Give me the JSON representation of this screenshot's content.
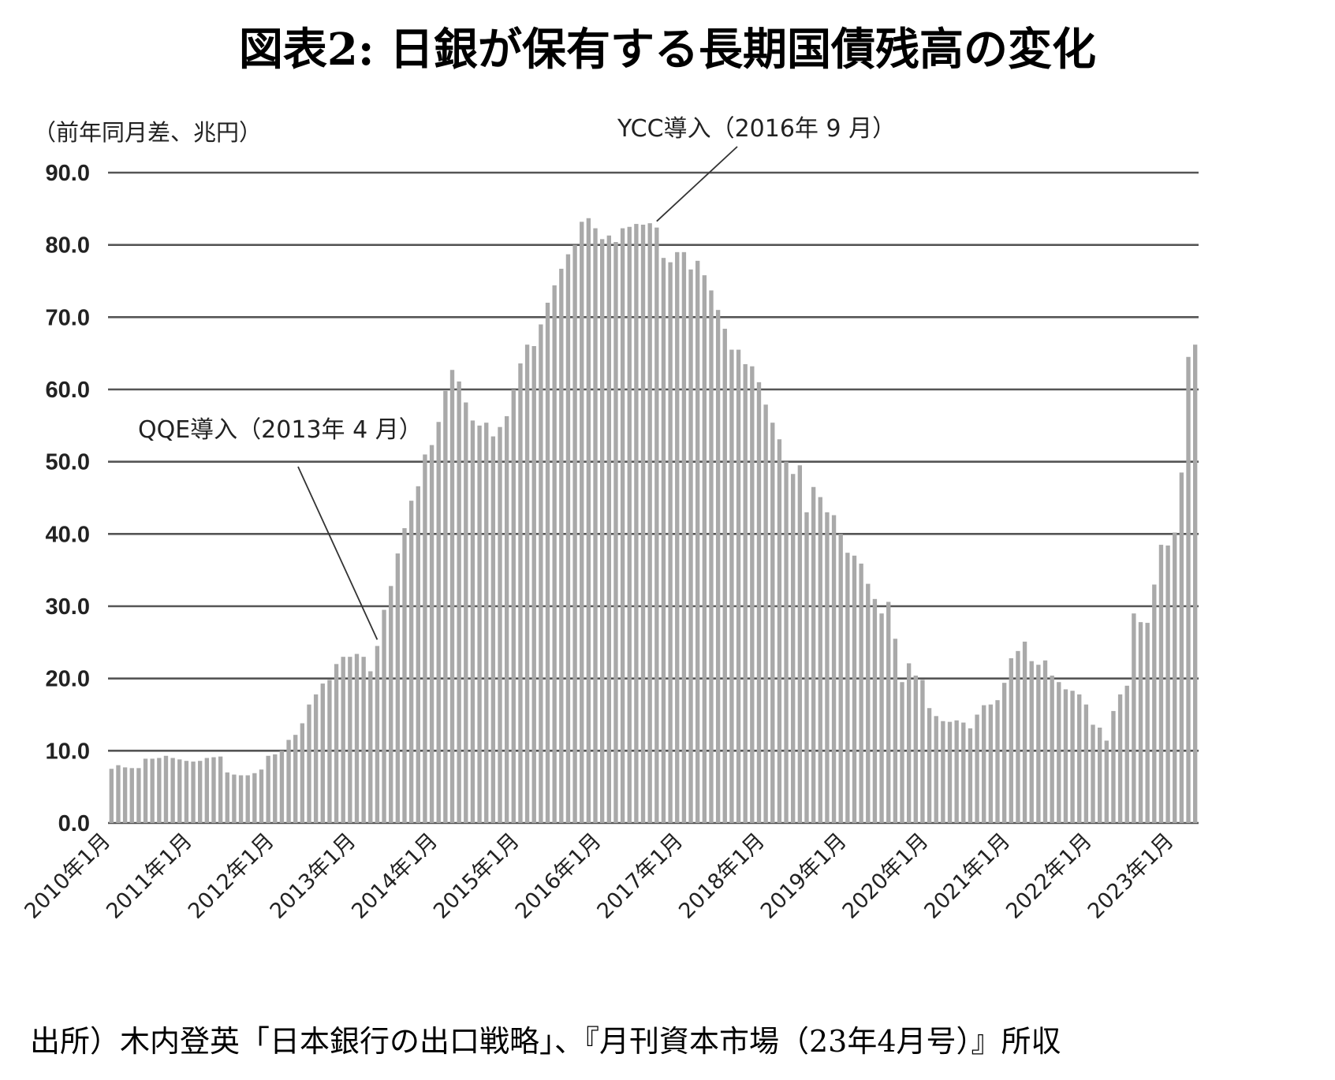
{
  "chart_data": {
    "type": "bar",
    "title": "図表2: 日銀が保有する長期国債残高の変化",
    "ylabel": "（前年同月差、兆円）",
    "xlabel": "",
    "ylim": [
      0,
      90
    ],
    "yticks": [
      "0.0",
      "10.0",
      "20.0",
      "30.0",
      "40.0",
      "50.0",
      "60.0",
      "70.0",
      "80.0",
      "90.0"
    ],
    "x_start": "2010-01",
    "xtick_labels": [
      "2010年1月",
      "2011年1月",
      "2012年1月",
      "2013年1月",
      "2014年1月",
      "2015年1月",
      "2016年1月",
      "2017年1月",
      "2018年1月",
      "2019年1月",
      "2020年1月",
      "2021年1月",
      "2022年1月",
      "2023年1月"
    ],
    "grid": true,
    "values": [
      7.5,
      8.0,
      7.7,
      7.6,
      7.6,
      8.9,
      8.9,
      9.0,
      9.3,
      9.0,
      8.8,
      8.6,
      8.5,
      8.6,
      9.0,
      9.1,
      9.2,
      7.0,
      6.7,
      6.6,
      6.6,
      6.9,
      7.4,
      9.3,
      9.5,
      10.0,
      11.5,
      12.2,
      13.8,
      16.4,
      17.8,
      19.3,
      19.8,
      22.0,
      23.0,
      23.0,
      23.4,
      23.0,
      21.0,
      24.5,
      29.5,
      32.8,
      37.3,
      40.8,
      44.6,
      46.6,
      51.0,
      52.3,
      55.5,
      59.8,
      62.7,
      61.1,
      58.2,
      55.7,
      55.0,
      55.4,
      53.5,
      54.8,
      56.3,
      60.0,
      63.6,
      66.2,
      66.0,
      69.0,
      72.0,
      74.4,
      76.7,
      78.7,
      80.0,
      83.2,
      83.7,
      82.3,
      80.8,
      81.3,
      80.4,
      82.3,
      82.5,
      82.9,
      82.8,
      83.0,
      82.4,
      78.2,
      77.6,
      79.0,
      79.0,
      76.6,
      77.8,
      75.8,
      73.7,
      71.0,
      68.4,
      65.5,
      65.5,
      63.5,
      63.2,
      61.0,
      57.9,
      55.4,
      53.1,
      50.0,
      48.3,
      49.5,
      43.0,
      46.5,
      45.1,
      43.0,
      42.6,
      40.0,
      37.4,
      37.0,
      35.9,
      33.1,
      31.0,
      29.0,
      30.6,
      25.5,
      19.5,
      22.1,
      20.4,
      19.8,
      15.9,
      14.8,
      14.1,
      14.0,
      14.2,
      13.9,
      13.1,
      15.0,
      16.3,
      16.4,
      17.0,
      19.4,
      22.8,
      23.8,
      25.1,
      22.4,
      21.9,
      22.5,
      20.4,
      19.5,
      18.5,
      18.3,
      17.8,
      16.4,
      13.6,
      13.2,
      11.4,
      15.5,
      17.8,
      19.0,
      29.0,
      27.8,
      27.7,
      33.0,
      38.5,
      38.4,
      40.2,
      48.5,
      64.5,
      66.2
    ],
    "annotations": [
      {
        "text": "QQE導入（2013年 4 月）",
        "target_index": 39
      },
      {
        "text": "YCC導入（2016年 9 月）",
        "target_index": 80
      }
    ],
    "bar_color": "#a9a9a9",
    "gridline_color": "#555555"
  },
  "source_note": "出所）木内登英「日本銀行の出口戦略」、『月刊資本市場（23年4月号）』所収"
}
